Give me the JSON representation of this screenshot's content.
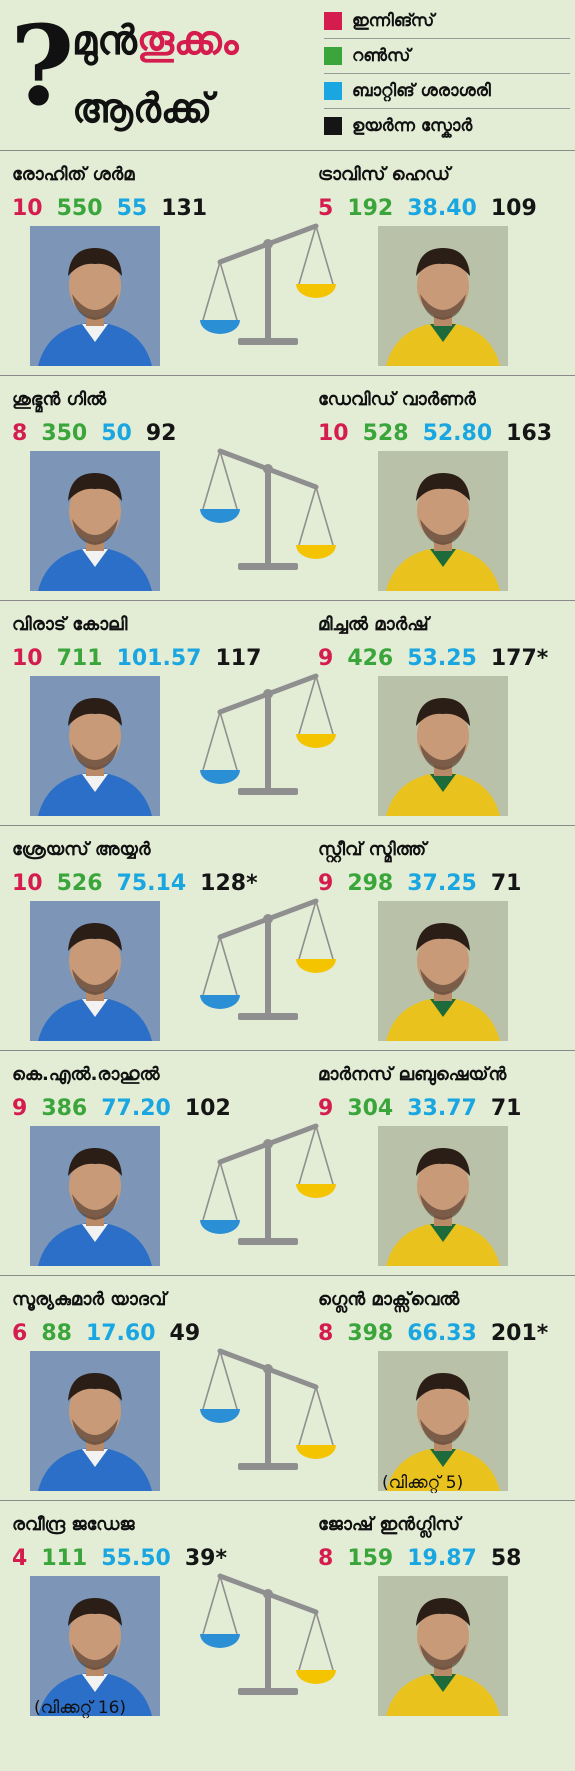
{
  "header": {
    "mark": "?",
    "title_line1_a": "മുൻ",
    "title_line1_b": "തൂക്കം",
    "title_line2": "ആർക്ക്",
    "accent_color": "#d51c4f"
  },
  "legend": [
    {
      "label": "ഇന്നിങ്സ്",
      "color": "#d51c4f"
    },
    {
      "label": "റൺസ്",
      "color": "#3aa53a"
    },
    {
      "label": "ബാറ്റിങ് ശരാശരി",
      "color": "#1aa6e0"
    },
    {
      "label": "ഉയർന്ന സ്കോർ",
      "color": "#151515"
    }
  ],
  "pairs": [
    {
      "left": {
        "name": "രോഹിത് ശർമ",
        "innings": "10",
        "runs": "550",
        "average": "55",
        "high": "131",
        "kit": "blue"
      },
      "right": {
        "name": "ട്രാവിസ് ഹെഡ്",
        "innings": "5",
        "runs": "192",
        "average": "38.40",
        "high": "109",
        "kit": "aus"
      },
      "tilt": "left"
    },
    {
      "left": {
        "name": "ശുഭ്മൻ ഗിൽ",
        "innings": "8",
        "runs": "350",
        "average": "50",
        "high": "92",
        "kit": "blue"
      },
      "right": {
        "name": "ഡേവിഡ് വാർണർ",
        "innings": "10",
        "runs": "528",
        "average": "52.80",
        "high": "163",
        "kit": "aus"
      },
      "tilt": "right"
    },
    {
      "left": {
        "name": "വിരാട് കോലി",
        "innings": "10",
        "runs": "711",
        "average": "101.57",
        "high": "117",
        "kit": "blue"
      },
      "right": {
        "name": "മിച്ചൽ മാർഷ്",
        "innings": "9",
        "runs": "426",
        "average": "53.25",
        "high": "177*",
        "kit": "aus"
      },
      "tilt": "left"
    },
    {
      "left": {
        "name": "ശ്രേയസ് അയ്യർ",
        "innings": "10",
        "runs": "526",
        "average": "75.14",
        "high": "128*",
        "kit": "blue"
      },
      "right": {
        "name": "സ്റ്റീവ് സ്മിത്ത്",
        "innings": "9",
        "runs": "298",
        "average": "37.25",
        "high": "71",
        "kit": "aus"
      },
      "tilt": "left"
    },
    {
      "left": {
        "name": "കെ.എൽ.രാഹുൽ",
        "innings": "9",
        "runs": "386",
        "average": "77.20",
        "high": "102",
        "kit": "blue"
      },
      "right": {
        "name": "മാർനസ് ലബുഷെയ്ൻ",
        "innings": "9",
        "runs": "304",
        "average": "33.77",
        "high": "71",
        "kit": "aus"
      },
      "tilt": "left"
    },
    {
      "left": {
        "name": "സൂര്യകുമാർ യാദവ്",
        "innings": "6",
        "runs": "88",
        "average": "17.60",
        "high": "49",
        "kit": "blue"
      },
      "right": {
        "name": "ഗ്ലെൻ മാക്സ്‌വെൽ",
        "innings": "8",
        "runs": "398",
        "average": "66.33",
        "high": "201*",
        "kit": "aus",
        "note": "(വിക്കറ്റ് 5)"
      },
      "tilt": "right"
    },
    {
      "left": {
        "name": "രവീന്ദ്ര ജഡേജ",
        "innings": "4",
        "runs": "111",
        "average": "55.50",
        "high": "39*",
        "kit": "blue",
        "note": "(വിക്കറ്റ് 16)"
      },
      "right": {
        "name": "ജോഷ് ഇൻഗ്ലിസ്",
        "innings": "8",
        "runs": "159",
        "average": "19.87",
        "high": "58",
        "kit": "aus"
      },
      "tilt": "right"
    }
  ]
}
